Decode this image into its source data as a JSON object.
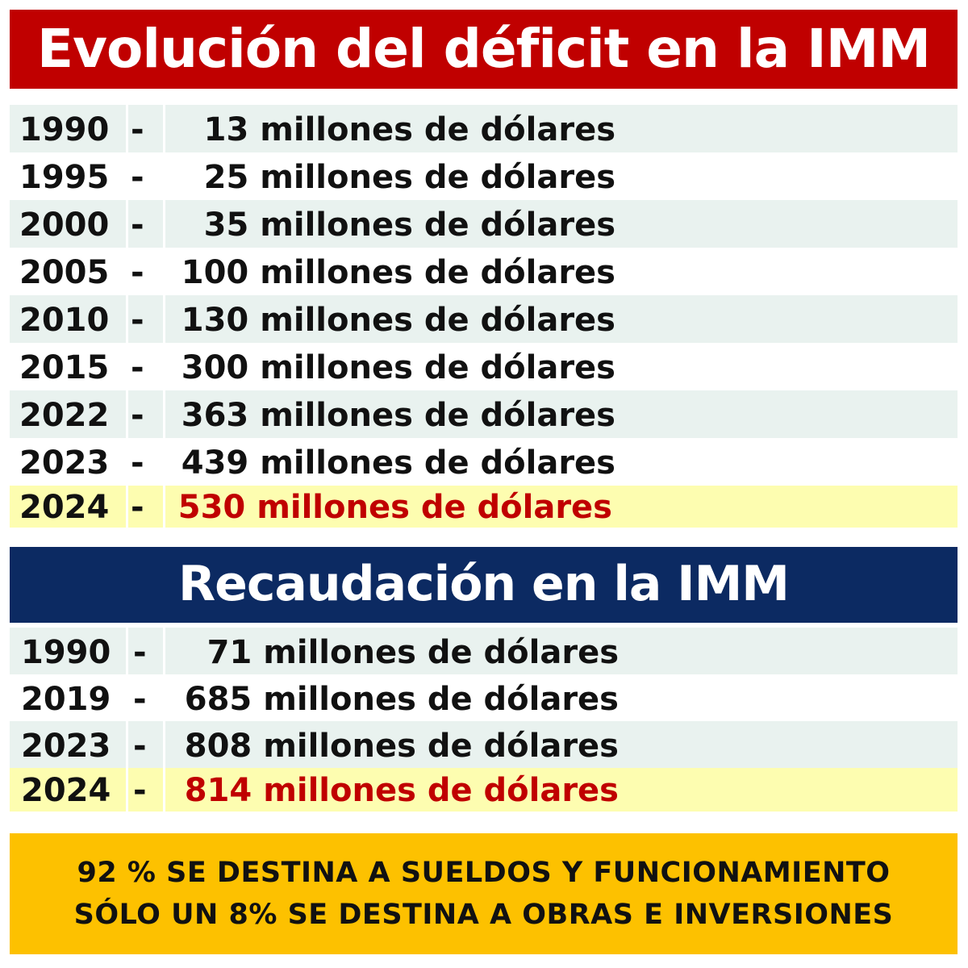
{
  "deficit": {
    "title": "Evolución del déficit en la IMM",
    "separator": "-",
    "rows": [
      {
        "year": "1990",
        "amount": "13 millones de dólares"
      },
      {
        "year": "1995",
        "amount": "25 millones de dólares"
      },
      {
        "year": "2000",
        "amount": "35 millones de dólares"
      },
      {
        "year": "2005",
        "amount": "100 millones de dólares"
      },
      {
        "year": "2010",
        "amount": "130 millones de dólares"
      },
      {
        "year": "2015",
        "amount": "300 millones de dólares"
      },
      {
        "year": "2022",
        "amount": "363 millones de dólares"
      },
      {
        "year": "2023",
        "amount": "439 millones de dólares"
      },
      {
        "year": "2024",
        "amount": "530 millones de dólares"
      }
    ]
  },
  "recaudacion": {
    "title": "Recaudación en la IMM",
    "separator": "-",
    "rows": [
      {
        "year": "1990",
        "amount": "71 millones de dólares"
      },
      {
        "year": "2019",
        "amount": "685 millones de dólares"
      },
      {
        "year": "2023",
        "amount": "808 millones de dólares"
      },
      {
        "year": "2024",
        "amount": "814 millones de dólares"
      }
    ]
  },
  "footer": {
    "line1": "92 % SE DESTINA A SUELDOS Y FUNCIONAMIENTO",
    "line2": "SÓLO UN 8% SE DESTINA A OBRAS E INVERSIONES"
  },
  "colors": {
    "deficit_banner": "#c00000",
    "recaudacion_banner": "#0c2a62",
    "highlight_text": "#c00000",
    "footer_bg": "#fdc100",
    "row_shade": "#e9f2ef",
    "row_highlight": "#fdfdb0"
  }
}
